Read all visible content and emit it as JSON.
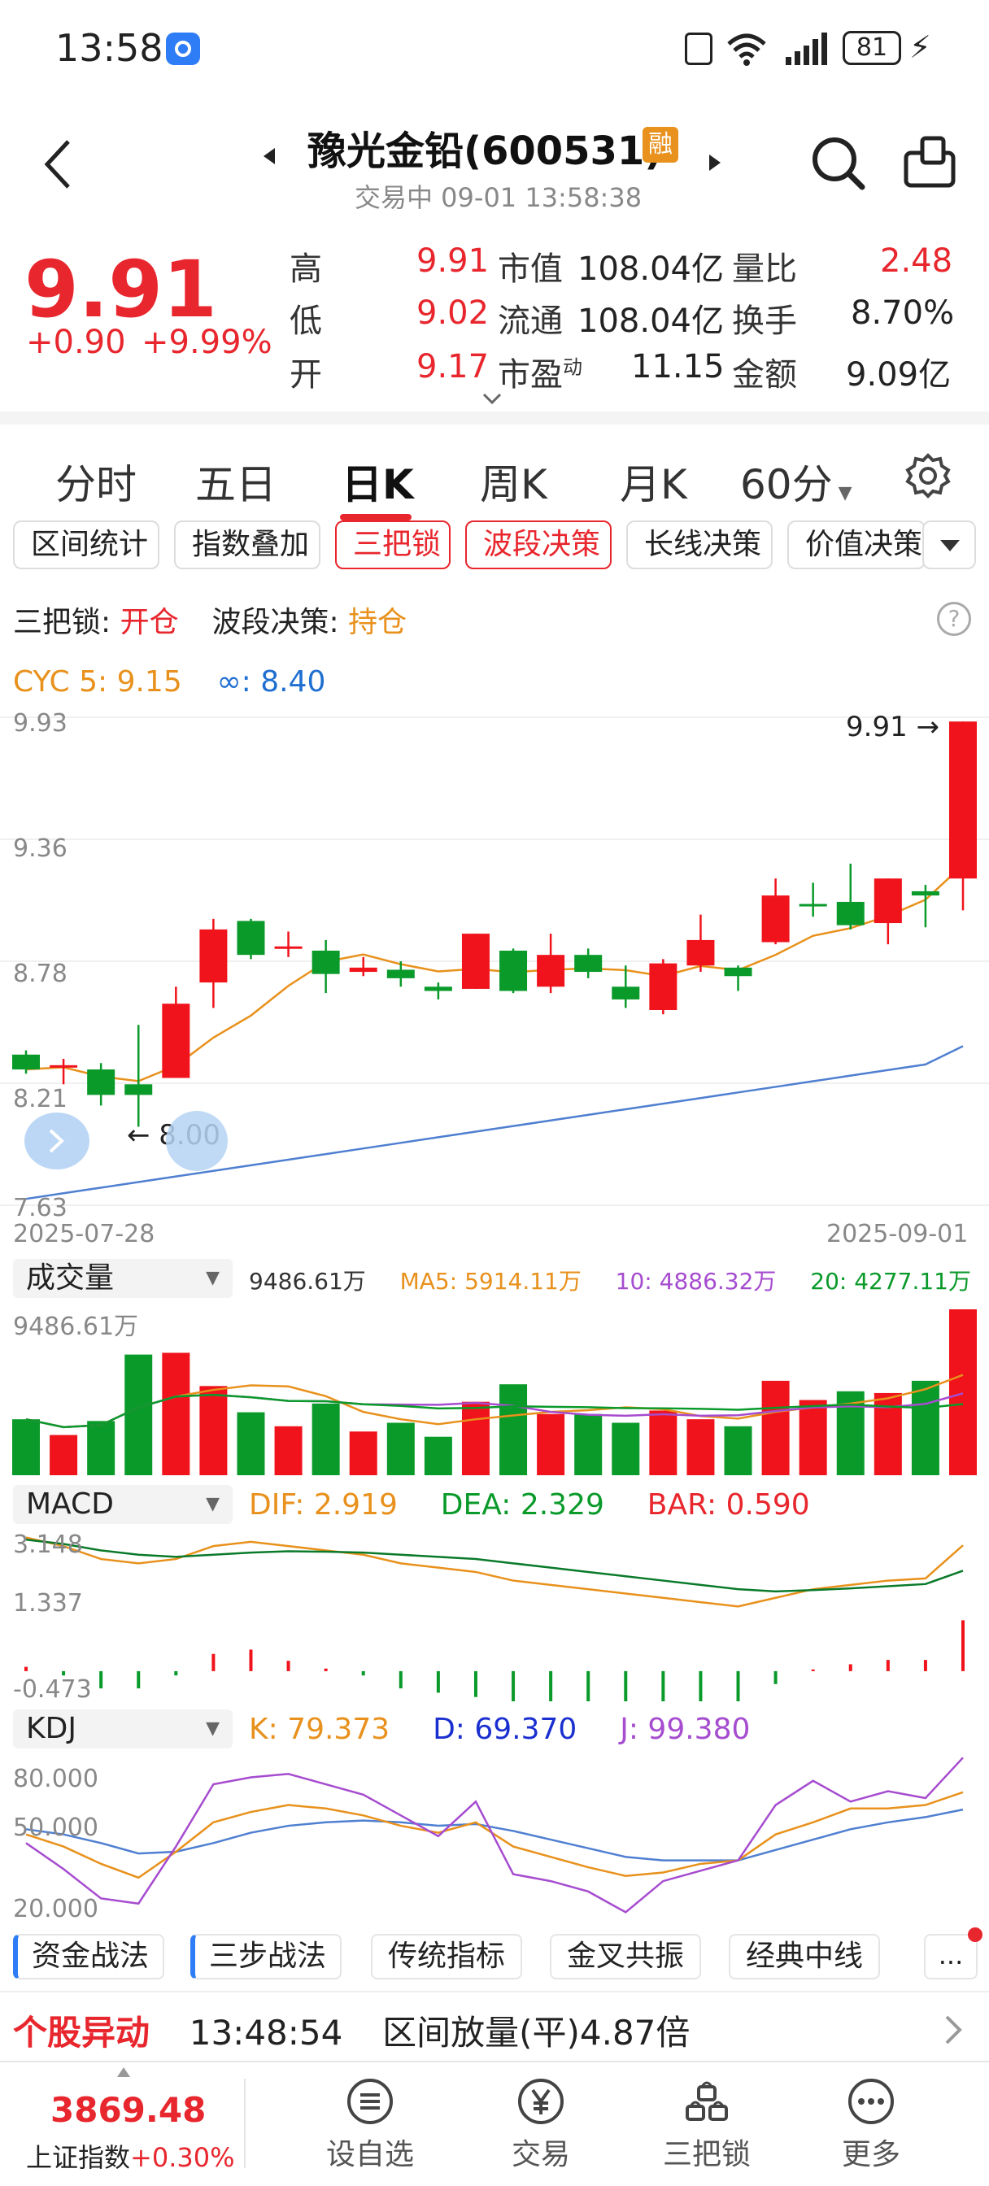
{
  "status_bar": {
    "time": "13:58",
    "battery": "81"
  },
  "header": {
    "title": "豫光金铅(600531)",
    "badge": "融",
    "subtitle": "交易中 09-01 13:58:38"
  },
  "quote": {
    "price": "9.91",
    "change": "+0.90",
    "change_pct": "+9.99%",
    "stats": [
      {
        "label": "高",
        "value": "9.91",
        "label2": "市值",
        "value2": "108.04亿",
        "label3": "量比",
        "value3": "2.48"
      },
      {
        "label": "低",
        "value": "9.02",
        "label2": "流通",
        "value2": "108.04亿",
        "label3": "换手",
        "value3": "8.70%"
      },
      {
        "label": "开",
        "value": "9.17",
        "label2": "市盈",
        "label2_sup": "动",
        "value2": "11.15",
        "label3": "金额",
        "value3": "9.09亿"
      }
    ]
  },
  "period_tabs": [
    "分时",
    "五日",
    "日K",
    "周K",
    "月K",
    "60分"
  ],
  "tool_tabs": [
    "区间统计",
    "指数叠加",
    "三把锁",
    "波段决策",
    "长线决策",
    "价值决策"
  ],
  "signals": {
    "lock_label": "三把锁:",
    "lock_value": "开仓",
    "band_label": "波段决策:",
    "band_value": "持仓"
  },
  "cyc_legend": {
    "cyc5": "CYC 5: 9.15",
    "cyc_inf": "∞: 8.40"
  },
  "kline": {
    "y_ticks": [
      "9.93",
      "9.36",
      "8.78",
      "8.21",
      "7.63"
    ],
    "start_date": "2025-07-28",
    "end_date": "2025-09-01",
    "high_marker": "9.91",
    "low_marker": "8.00"
  },
  "volume": {
    "selector": "成交量",
    "value": "9486.61万",
    "ma5": "MA5: 5914.11万",
    "ma10": "10: 4886.32万",
    "ma20": "20: 4277.11万",
    "top": "9486.61万"
  },
  "macd": {
    "selector": "MACD",
    "dif": "DIF: 2.919",
    "dea": "DEA: 2.329",
    "bar": "BAR: 0.590",
    "ticks": [
      "3.148",
      "1.337",
      "-0.473"
    ]
  },
  "kdj": {
    "selector": "KDJ",
    "k": "K: 79.373",
    "d": "D: 69.370",
    "j": "J: 99.380",
    "ticks": [
      "80.000",
      "50.000",
      "20.000"
    ]
  },
  "strategy_tabs": [
    "资金战法",
    "三步战法",
    "传统指标",
    "金叉共振",
    "经典中线",
    "..."
  ],
  "alert": {
    "label": "个股异动",
    "time": "13:48:54",
    "text": "区间放量(平)4.87倍"
  },
  "bottom_nav": {
    "index_value": "3869.48",
    "index_name": "上证指数",
    "index_change": "+0.30%",
    "items": [
      "设自选",
      "交易",
      "三把锁",
      "更多"
    ]
  },
  "chart_data": {
    "type": "candlestick",
    "dates_range": [
      "2025-07-28",
      "2025-09-01"
    ],
    "ylim": [
      7.63,
      9.93
    ],
    "candles": [
      {
        "o": 8.34,
        "c": 8.27,
        "h": 8.36,
        "l": 8.25
      },
      {
        "o": 8.29,
        "c": 8.29,
        "h": 8.32,
        "l": 8.2
      },
      {
        "o": 8.27,
        "c": 8.15,
        "h": 8.3,
        "l": 8.1
      },
      {
        "o": 8.2,
        "c": 8.15,
        "h": 8.48,
        "l": 8.0
      },
      {
        "o": 8.23,
        "c": 8.58,
        "h": 8.66,
        "l": 8.23
      },
      {
        "o": 8.68,
        "c": 8.93,
        "h": 8.98,
        "l": 8.56
      },
      {
        "o": 8.97,
        "c": 8.81,
        "h": 8.98,
        "l": 8.79
      },
      {
        "o": 8.85,
        "c": 8.85,
        "h": 8.92,
        "l": 8.8
      },
      {
        "o": 8.83,
        "c": 8.72,
        "h": 8.88,
        "l": 8.63
      },
      {
        "o": 8.73,
        "c": 8.75,
        "h": 8.8,
        "l": 8.71
      },
      {
        "o": 8.74,
        "c": 8.7,
        "h": 8.78,
        "l": 8.66
      },
      {
        "o": 8.66,
        "c": 8.64,
        "h": 8.68,
        "l": 8.6
      },
      {
        "o": 8.65,
        "c": 8.91,
        "h": 8.91,
        "l": 8.65
      },
      {
        "o": 8.83,
        "c": 8.64,
        "h": 8.84,
        "l": 8.63
      },
      {
        "o": 8.66,
        "c": 8.81,
        "h": 8.91,
        "l": 8.63
      },
      {
        "o": 8.81,
        "c": 8.73,
        "h": 8.84,
        "l": 8.7
      },
      {
        "o": 8.66,
        "c": 8.6,
        "h": 8.76,
        "l": 8.56
      },
      {
        "o": 8.55,
        "c": 8.77,
        "h": 8.79,
        "l": 8.53
      },
      {
        "o": 8.76,
        "c": 8.88,
        "h": 9.0,
        "l": 8.73
      },
      {
        "o": 8.75,
        "c": 8.71,
        "h": 8.76,
        "l": 8.64
      },
      {
        "o": 8.87,
        "c": 9.09,
        "h": 9.17,
        "l": 8.86
      },
      {
        "o": 9.05,
        "c": 9.05,
        "h": 9.15,
        "l": 8.99
      },
      {
        "o": 9.06,
        "c": 8.95,
        "h": 9.24,
        "l": 8.93
      },
      {
        "o": 8.96,
        "c": 9.17,
        "h": 9.17,
        "l": 8.86
      },
      {
        "o": 9.11,
        "c": 9.09,
        "h": 9.14,
        "l": 8.94
      },
      {
        "o": 9.17,
        "c": 9.91,
        "h": 9.91,
        "l": 9.02
      }
    ],
    "volume": [
      3200,
      2300,
      3100,
      6900,
      7000,
      5100,
      3600,
      2800,
      4100,
      2500,
      3000,
      2200,
      4200,
      5200,
      3500,
      3500,
      3000,
      3700,
      3200,
      2800,
      5400,
      4300,
      4800,
      4700,
      5400,
      9486.61
    ]
  }
}
